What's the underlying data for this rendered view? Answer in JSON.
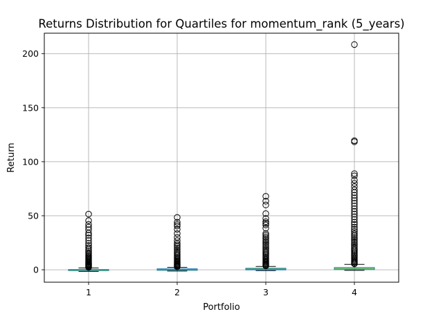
{
  "chart_data": {
    "type": "boxplot",
    "title": "Returns Distribution for Quartiles for momentum_rank (5_years)",
    "xlabel": "Portfolio",
    "ylabel": "Return",
    "categories": [
      "1",
      "2",
      "3",
      "4"
    ],
    "ylim": [
      -11.5,
      219
    ],
    "yticks": [
      0,
      50,
      100,
      150,
      200
    ],
    "ytick_labels": [
      "0",
      "50",
      "100",
      "150",
      "200"
    ],
    "grid": true,
    "colors": {
      "box": "#1f77b4",
      "median": "#2ca02c",
      "whisker": "#000000",
      "grid": "#b0b0b0",
      "flier": "#000000"
    },
    "boxes": [
      {
        "category": "1",
        "whisker_low": -1.5,
        "q1": -0.8,
        "median": -0.1,
        "q3": 0.3,
        "whisker_high": 1.7,
        "fliers": [
          2.2,
          2.8,
          3.3,
          3.9,
          4.4,
          5.0,
          5.6,
          6.2,
          6.9,
          7.5,
          8.2,
          9.0,
          9.8,
          10.7,
          11.5,
          12.5,
          13.5,
          14.8,
          16.0,
          17.5,
          19.0,
          20.5,
          22.5,
          24.5,
          27.0,
          29.5,
          32.0,
          34.0,
          37.0,
          39.5,
          42.0,
          45.5,
          51.5
        ]
      },
      {
        "category": "2",
        "whisker_low": -1.2,
        "q1": -0.5,
        "median": 0.2,
        "q3": 0.9,
        "whisker_high": 2.3,
        "fliers": [
          2.8,
          3.4,
          4.0,
          4.6,
          5.2,
          5.9,
          6.6,
          7.3,
          8.1,
          8.9,
          9.8,
          10.8,
          11.8,
          13.0,
          14.3,
          15.6,
          17.0,
          18.5,
          20.0,
          21.5,
          23.0,
          24.5,
          27.0,
          30.0,
          33.5,
          37.5,
          40.5,
          42.0,
          44.0,
          48.5
        ]
      },
      {
        "category": "3",
        "whisker_low": -0.8,
        "q1": -0.1,
        "median": 0.6,
        "q3": 1.4,
        "whisker_high": 3.1,
        "fliers": [
          3.6,
          4.3,
          5.0,
          5.7,
          6.5,
          7.3,
          8.1,
          9.0,
          10.0,
          11.0,
          12.1,
          13.2,
          14.4,
          15.7,
          17.0,
          18.4,
          19.8,
          21.3,
          22.8,
          24.3,
          25.8,
          27.3,
          28.8,
          30.3,
          32.0,
          33.5,
          38.5,
          41.5,
          43.0,
          44.5,
          47.5,
          52.0,
          60.0,
          63.5,
          68.0
        ]
      },
      {
        "category": "4",
        "whisker_low": -0.5,
        "q1": 0.2,
        "median": 1.1,
        "q3": 2.1,
        "whisker_high": 5.0,
        "fliers": [
          5.5,
          6.3,
          7.1,
          7.9,
          8.8,
          9.7,
          10.7,
          11.7,
          12.8,
          13.9,
          15.1,
          16.3,
          17.6,
          18.9,
          20.2,
          21.6,
          23.0,
          24.5,
          26.0,
          27.5,
          29.0,
          30.5,
          32.0,
          33.5,
          35.5,
          37.5,
          39.5,
          42.0,
          44.0,
          46.5,
          49.0,
          51.5,
          54.0,
          56.5,
          59.0,
          61.5,
          64.0,
          66.5,
          69.0,
          71.5,
          74.0,
          77.0,
          80.0,
          83.0,
          87.0,
          89.0,
          118.5,
          119.5,
          208.5
        ]
      }
    ]
  }
}
